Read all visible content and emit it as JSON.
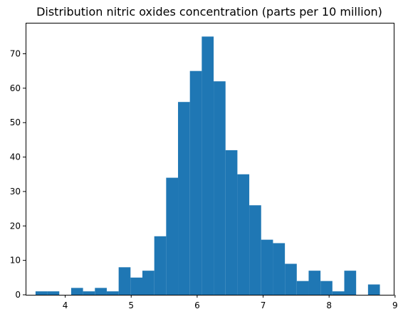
{
  "chart_data": {
    "type": "bar",
    "title": "Distribution nitric oxides concentration (parts per 10 million)",
    "xlabel": "",
    "ylabel": "",
    "xlim": [
      3.4,
      8.98
    ],
    "ylim": [
      0,
      79
    ],
    "grid": false,
    "legend": "none",
    "bar_color": "#1f77b4",
    "x_ticks": [
      4,
      5,
      6,
      7,
      8,
      9
    ],
    "y_ticks": [
      0,
      10,
      20,
      30,
      40,
      50,
      60,
      70
    ],
    "bin_edges": [
      3.55,
      3.73,
      3.91,
      4.09,
      4.27,
      4.45,
      4.63,
      4.81,
      4.99,
      5.17,
      5.35,
      5.53,
      5.71,
      5.89,
      6.07,
      6.25,
      6.43,
      6.61,
      6.79,
      6.97,
      7.15,
      7.33,
      7.51,
      7.69,
      7.87,
      8.05,
      8.23,
      8.41,
      8.59,
      8.77
    ],
    "values": [
      1,
      1,
      0,
      2,
      1,
      2,
      1,
      8,
      5,
      7,
      17,
      34,
      56,
      65,
      75,
      62,
      42,
      35,
      26,
      16,
      15,
      9,
      4,
      7,
      4,
      1,
      7,
      0,
      3
    ]
  }
}
